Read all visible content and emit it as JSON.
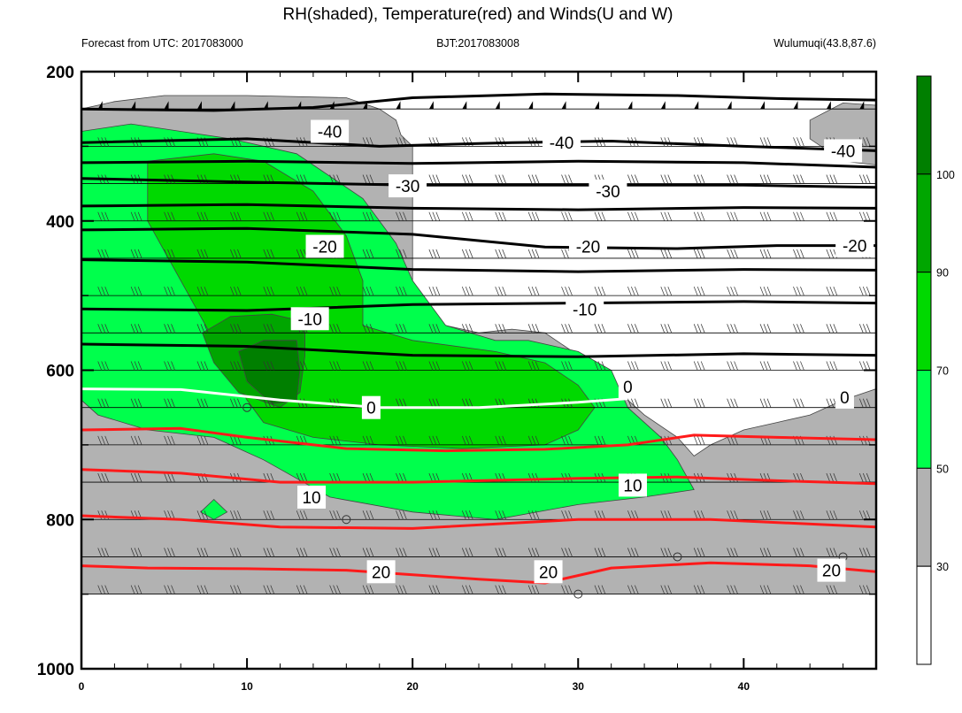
{
  "title": "RH(shaded), Temperature(red) and Winds(U and W)",
  "subtitle_left": "Forecast from UTC: 2017083000",
  "subtitle_center": "BJT:2017083008",
  "subtitle_right": "Wulumuqi(43.8,87.6)",
  "chart_data": {
    "type": "contour",
    "x_axis": {
      "range": [
        0,
        48
      ],
      "tick_labels": [
        "0",
        "10",
        "20",
        "30",
        "40"
      ]
    },
    "y_axis": {
      "range": [
        200,
        1000
      ],
      "inverted": true,
      "tick_labels": [
        "200",
        "400",
        "600",
        "800",
        "1000"
      ]
    },
    "colorbar": {
      "tick_labels": [
        "30",
        "50",
        "70",
        "90",
        "100"
      ],
      "bins": [
        {
          "level": 0,
          "color": "#ffffff"
        },
        {
          "level": 30,
          "color": "#b2b2b2"
        },
        {
          "level": 50,
          "color": "#00ff4c"
        },
        {
          "level": 70,
          "color": "#00d900"
        },
        {
          "level": 90,
          "color": "#00a600"
        },
        {
          "level": 100,
          "color": "#007f00"
        }
      ]
    },
    "rh_regions": [
      {
        "level": 30,
        "points": [
          [
            0,
            250
          ],
          [
            2,
            240
          ],
          [
            5,
            232
          ],
          [
            10,
            232
          ],
          [
            16,
            235
          ],
          [
            18,
            250
          ],
          [
            19,
            265
          ],
          [
            19.3,
            285
          ],
          [
            20,
            300
          ],
          [
            20,
            400
          ],
          [
            20,
            500
          ],
          [
            22,
            540
          ],
          [
            24,
            550
          ],
          [
            26,
            545
          ],
          [
            28,
            550
          ],
          [
            30,
            580
          ],
          [
            32,
            620
          ],
          [
            34,
            660
          ],
          [
            36,
            690
          ],
          [
            37,
            715
          ],
          [
            38,
            700
          ],
          [
            40,
            680
          ],
          [
            42,
            670
          ],
          [
            44,
            660
          ],
          [
            46,
            640
          ],
          [
            48,
            625
          ],
          [
            48,
            900
          ],
          [
            0,
            900
          ]
        ]
      },
      {
        "level": 30,
        "points": [
          [
            44,
            265
          ],
          [
            46,
            242
          ],
          [
            48,
            245
          ],
          [
            48,
            325
          ],
          [
            46,
            320
          ],
          [
            44,
            290
          ]
        ]
      },
      {
        "level": 50,
        "points": [
          [
            0,
            280
          ],
          [
            3,
            270
          ],
          [
            6,
            280
          ],
          [
            9,
            290
          ],
          [
            13,
            310
          ],
          [
            17,
            370
          ],
          [
            19,
            430
          ],
          [
            20,
            480
          ],
          [
            22,
            540
          ],
          [
            25,
            560
          ],
          [
            27,
            560
          ],
          [
            30,
            575
          ],
          [
            32,
            600
          ],
          [
            33,
            650
          ],
          [
            35,
            690
          ],
          [
            36,
            720
          ],
          [
            37,
            760
          ],
          [
            34,
            770
          ],
          [
            30,
            780
          ],
          [
            25,
            800
          ],
          [
            20,
            790
          ],
          [
            15,
            770
          ],
          [
            11,
            720
          ],
          [
            8,
            690
          ],
          [
            4,
            680
          ],
          [
            1,
            660
          ],
          [
            0,
            640
          ]
        ]
      },
      {
        "level": 50,
        "points": [
          [
            7.2,
            790
          ],
          [
            8,
            773
          ],
          [
            8.8,
            790
          ],
          [
            8,
            800
          ]
        ]
      },
      {
        "level": 70,
        "points": [
          [
            4,
            320
          ],
          [
            8,
            310
          ],
          [
            11,
            320
          ],
          [
            14,
            360
          ],
          [
            16,
            420
          ],
          [
            17,
            480
          ],
          [
            17,
            540
          ],
          [
            20,
            560
          ],
          [
            25,
            575
          ],
          [
            28,
            590
          ],
          [
            30,
            620
          ],
          [
            31,
            650
          ],
          [
            30,
            680
          ],
          [
            28,
            700
          ],
          [
            23,
            705
          ],
          [
            18,
            700
          ],
          [
            14,
            690
          ],
          [
            11,
            670
          ],
          [
            10,
            640
          ],
          [
            8,
            560
          ],
          [
            6,
            480
          ],
          [
            4,
            400
          ]
        ]
      },
      {
        "level": 90,
        "points": [
          [
            7.3,
            550
          ],
          [
            9,
            528
          ],
          [
            11.5,
            525
          ],
          [
            13.5,
            535
          ],
          [
            13.5,
            580
          ],
          [
            13.2,
            630
          ],
          [
            12,
            650
          ],
          [
            9.5,
            630
          ],
          [
            8,
            590
          ]
        ]
      },
      {
        "level": 100,
        "points": [
          [
            9.5,
            575
          ],
          [
            11,
            560
          ],
          [
            13,
            560
          ],
          [
            13.2,
            600
          ],
          [
            13,
            640
          ],
          [
            11.5,
            645
          ],
          [
            10,
            615
          ]
        ]
      }
    ],
    "contours": [
      {
        "label": "-40",
        "color": "black",
        "points": [
          [
            0,
            250
          ],
          [
            8,
            252
          ],
          [
            14,
            248
          ],
          [
            20,
            235
          ],
          [
            28,
            230
          ],
          [
            36,
            232
          ],
          [
            42,
            236
          ],
          [
            48,
            238
          ]
        ]
      },
      {
        "label": "-40",
        "color": "black",
        "points": [
          [
            0,
            295
          ],
          [
            10,
            290
          ],
          [
            18,
            300
          ],
          [
            26,
            295
          ],
          [
            32,
            293
          ],
          [
            40,
            300
          ],
          [
            48,
            306
          ]
        ]
      },
      {
        "label": "-40",
        "color": "black",
        "points": [
          [
            0,
            322
          ],
          [
            10,
            320
          ],
          [
            20,
            323
          ],
          [
            30,
            320
          ],
          [
            40,
            322
          ],
          [
            48,
            328
          ]
        ]
      },
      {
        "label": "-30",
        "color": "black",
        "points": [
          [
            0,
            343
          ],
          [
            10,
            348
          ],
          [
            20,
            352
          ],
          [
            30,
            352
          ],
          [
            40,
            352
          ],
          [
            48,
            355
          ]
        ]
      },
      {
        "label": "-30",
        "color": "black",
        "points": [
          [
            0,
            380
          ],
          [
            10,
            378
          ],
          [
            20,
            383
          ],
          [
            30,
            385
          ],
          [
            40,
            382
          ],
          [
            48,
            383
          ]
        ]
      },
      {
        "label": "-20",
        "color": "black",
        "points": [
          [
            0,
            412
          ],
          [
            10,
            410
          ],
          [
            20,
            418
          ],
          [
            28,
            435
          ],
          [
            36,
            437
          ],
          [
            42,
            433
          ],
          [
            48,
            433
          ]
        ]
      },
      {
        "label": "-20",
        "color": "black",
        "points": [
          [
            0,
            452
          ],
          [
            10,
            455
          ],
          [
            20,
            465
          ],
          [
            30,
            468
          ],
          [
            40,
            465
          ],
          [
            48,
            466
          ]
        ]
      },
      {
        "label": "-10",
        "color": "black",
        "points": [
          [
            0,
            518
          ],
          [
            10,
            520
          ],
          [
            20,
            512
          ],
          [
            30,
            510
          ],
          [
            40,
            508
          ],
          [
            48,
            510
          ]
        ]
      },
      {
        "label": "-10",
        "color": "black",
        "points": [
          [
            0,
            565
          ],
          [
            10,
            568
          ],
          [
            20,
            580
          ],
          [
            30,
            582
          ],
          [
            40,
            578
          ],
          [
            48,
            580
          ]
        ]
      },
      {
        "label": "0",
        "color": "white",
        "points": [
          [
            0,
            625
          ],
          [
            6,
            626
          ],
          [
            12,
            640
          ],
          [
            18,
            650
          ],
          [
            24,
            650
          ],
          [
            30,
            643
          ],
          [
            33,
            638
          ]
        ]
      },
      {
        "label": "10",
        "color": "red",
        "points": [
          [
            0,
            680
          ],
          [
            6,
            678
          ],
          [
            10,
            690
          ],
          [
            16,
            705
          ],
          [
            22,
            708
          ],
          [
            28,
            706
          ],
          [
            33,
            700
          ],
          [
            37,
            687
          ],
          [
            42,
            690
          ],
          [
            48,
            693
          ]
        ]
      },
      {
        "label": "10",
        "color": "red",
        "points": [
          [
            0,
            733
          ],
          [
            6,
            738
          ],
          [
            12,
            750
          ],
          [
            20,
            750
          ],
          [
            30,
            745
          ],
          [
            36,
            743
          ],
          [
            42,
            748
          ],
          [
            48,
            752
          ]
        ]
      },
      {
        "label": "20",
        "color": "red",
        "points": [
          [
            0,
            795
          ],
          [
            6,
            800
          ],
          [
            12,
            810
          ],
          [
            20,
            812
          ],
          [
            30,
            800
          ],
          [
            38,
            800
          ],
          [
            48,
            810
          ]
        ]
      },
      {
        "label": "20",
        "color": "red",
        "points": [
          [
            0,
            862
          ],
          [
            4,
            865
          ],
          [
            10,
            866
          ],
          [
            16,
            868
          ],
          [
            24,
            880
          ],
          [
            28,
            885
          ],
          [
            32,
            865
          ],
          [
            38,
            858
          ],
          [
            44,
            862
          ],
          [
            48,
            870
          ]
        ]
      }
    ],
    "contour_labels": [
      {
        "text": "-40",
        "x": 15,
        "y": 280,
        "color": "black"
      },
      {
        "text": "-40",
        "x": 29,
        "y": 295,
        "color": "black"
      },
      {
        "text": "-40",
        "x": 46,
        "y": 306,
        "color": "black"
      },
      {
        "text": "-30",
        "x": 19.7,
        "y": 353,
        "color": "black"
      },
      {
        "text": "-30",
        "x": 31.8,
        "y": 360,
        "color": "black"
      },
      {
        "text": "-20",
        "x": 14.7,
        "y": 434,
        "color": "black"
      },
      {
        "text": "-20",
        "x": 30.6,
        "y": 434,
        "color": "black"
      },
      {
        "text": "-20",
        "x": 46.7,
        "y": 433,
        "color": "black"
      },
      {
        "text": "-10",
        "x": 13.8,
        "y": 531,
        "color": "black"
      },
      {
        "text": "-10",
        "x": 30.4,
        "y": 518,
        "color": "black"
      },
      {
        "text": "0",
        "x": 17.5,
        "y": 650,
        "color": "black"
      },
      {
        "text": "0",
        "x": 33,
        "y": 622,
        "color": "black"
      },
      {
        "text": "0",
        "x": 46.1,
        "y": 636,
        "color": "black"
      },
      {
        "text": "10",
        "x": 13.9,
        "y": 770,
        "color": "black"
      },
      {
        "text": "10",
        "x": 33.3,
        "y": 754,
        "color": "black"
      },
      {
        "text": "20",
        "x": 18.1,
        "y": 870,
        "color": "black"
      },
      {
        "text": "20",
        "x": 28.2,
        "y": 870,
        "color": "black"
      },
      {
        "text": "20",
        "x": 45.3,
        "y": 868,
        "color": "black"
      }
    ],
    "circles": [
      [
        10,
        650
      ],
      [
        16,
        800
      ],
      [
        30,
        900
      ],
      [
        36,
        850
      ],
      [
        46,
        850
      ]
    ],
    "pressure_levels": [
      250,
      300,
      350,
      400,
      450,
      500,
      550,
      600,
      650,
      700,
      750,
      800,
      850,
      900
    ]
  }
}
